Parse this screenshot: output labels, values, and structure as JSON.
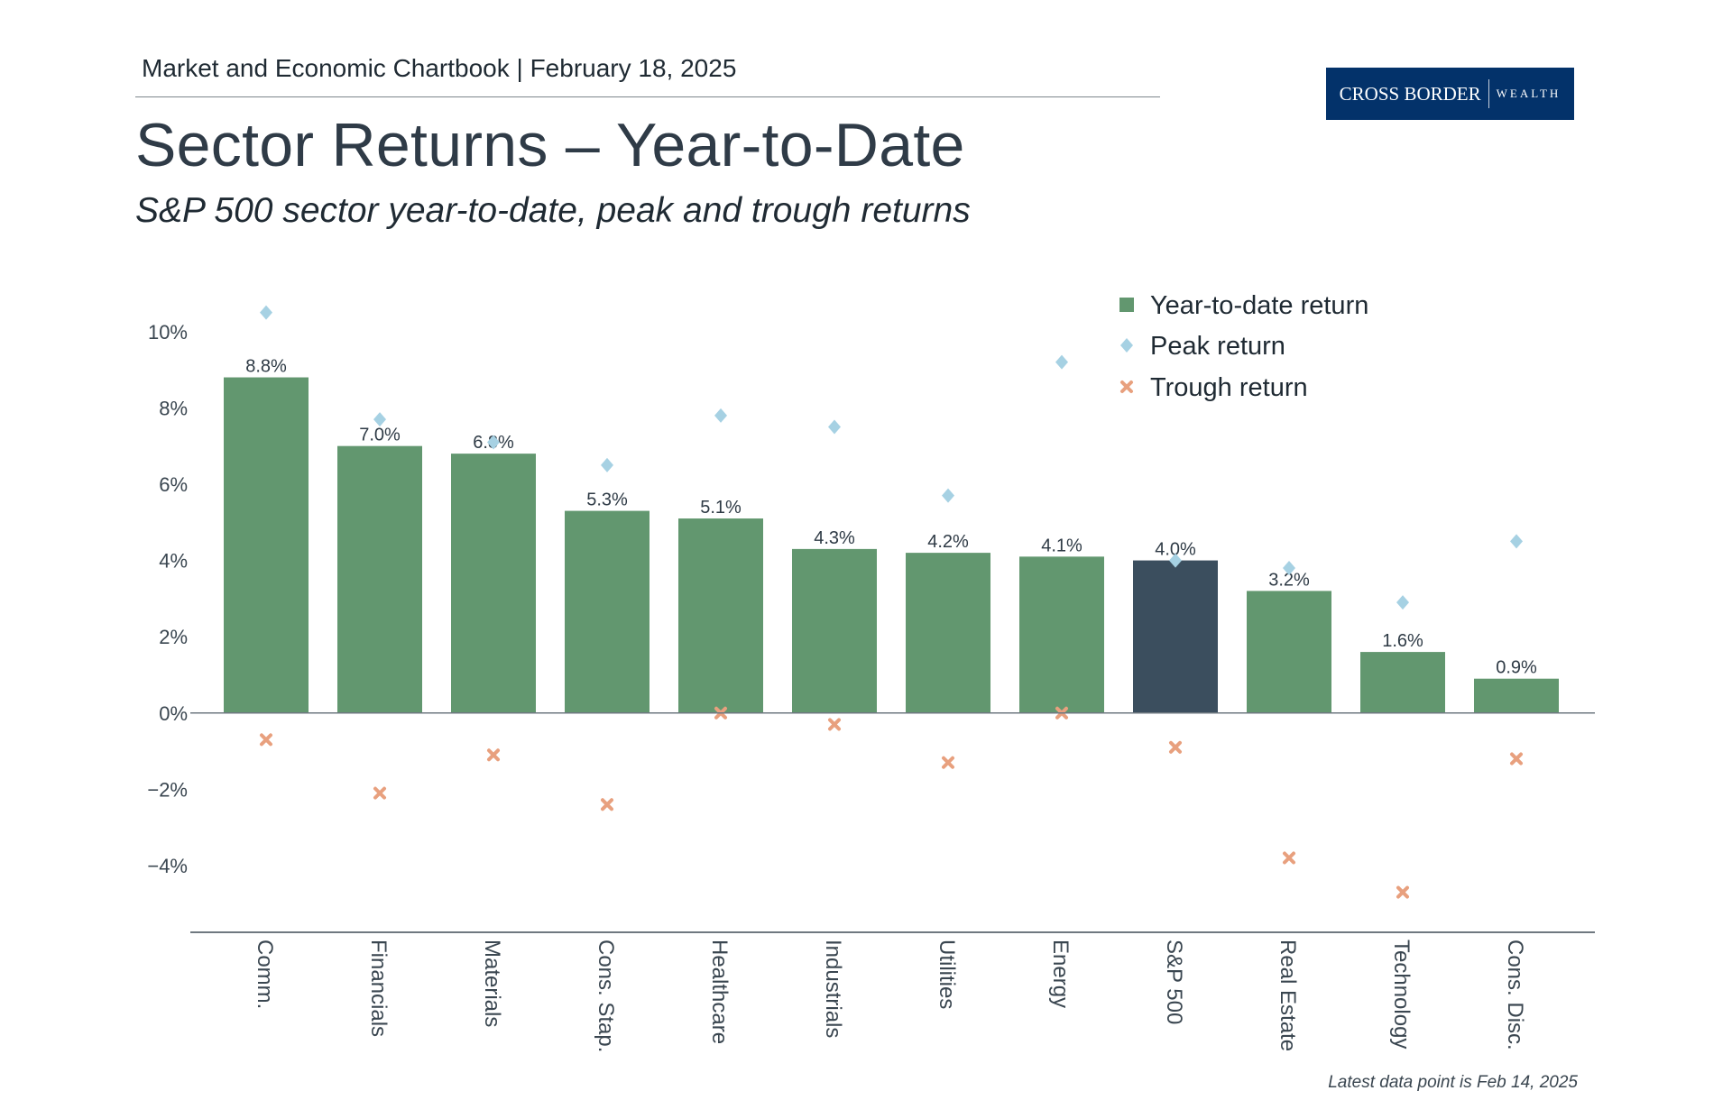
{
  "header": {
    "chartbook": "Market and Economic Chartbook | February 18, 2025",
    "title": "Sector Returns – Year-to-Date",
    "subtitle": "S&P 500 sector year-to-date, peak and trough returns",
    "logo": {
      "primary": "CROSS BORDER",
      "secondary": "WEALTH"
    }
  },
  "footnote": "Latest data point is Feb 14, 2025",
  "colors": {
    "bar": "#62976f",
    "highlight_bar": "#3b4e5e",
    "peak": "#a6d1e3",
    "trough": "#e8a07e",
    "logo_bg": "#03326a"
  },
  "chart_data": {
    "type": "bar",
    "title": "",
    "xlabel": "",
    "ylabel": "",
    "ylim": [
      -5.75,
      11
    ],
    "yticks": [
      -4,
      -2,
      0,
      2,
      4,
      6,
      8,
      10
    ],
    "ytick_labels": [
      "−4%",
      "−2%",
      "0%",
      "2%",
      "4%",
      "6%",
      "8%",
      "10%"
    ],
    "grid": false,
    "legend_position": "top-right",
    "categories": [
      "Comm.",
      "Financials",
      "Materials",
      "Cons. Stap.",
      "Healthcare",
      "Industrials",
      "Utilities",
      "Energy",
      "S&P 500",
      "Real Estate",
      "Technology",
      "Cons. Disc."
    ],
    "highlight_category": "S&P 500",
    "series": [
      {
        "name": "Year-to-date return",
        "marker": "bar",
        "values": [
          8.8,
          7.0,
          6.8,
          5.3,
          5.1,
          4.3,
          4.2,
          4.1,
          4.0,
          3.2,
          1.6,
          0.9
        ],
        "labels": [
          "8.8%",
          "7.0%",
          "6.8%",
          "5.3%",
          "5.1%",
          "4.3%",
          "4.2%",
          "4.1%",
          "4.0%",
          "3.2%",
          "1.6%",
          "0.9%"
        ]
      },
      {
        "name": "Peak return",
        "marker": "diamond",
        "values": [
          10.5,
          7.7,
          7.1,
          6.5,
          7.8,
          7.5,
          5.7,
          9.2,
          4.0,
          3.8,
          2.9,
          4.5
        ]
      },
      {
        "name": "Trough return",
        "marker": "x",
        "values": [
          -0.7,
          -2.1,
          -1.1,
          -2.4,
          0.0,
          -0.3,
          -1.3,
          0.0,
          -0.9,
          -3.8,
          -4.7,
          -1.2
        ]
      }
    ]
  }
}
